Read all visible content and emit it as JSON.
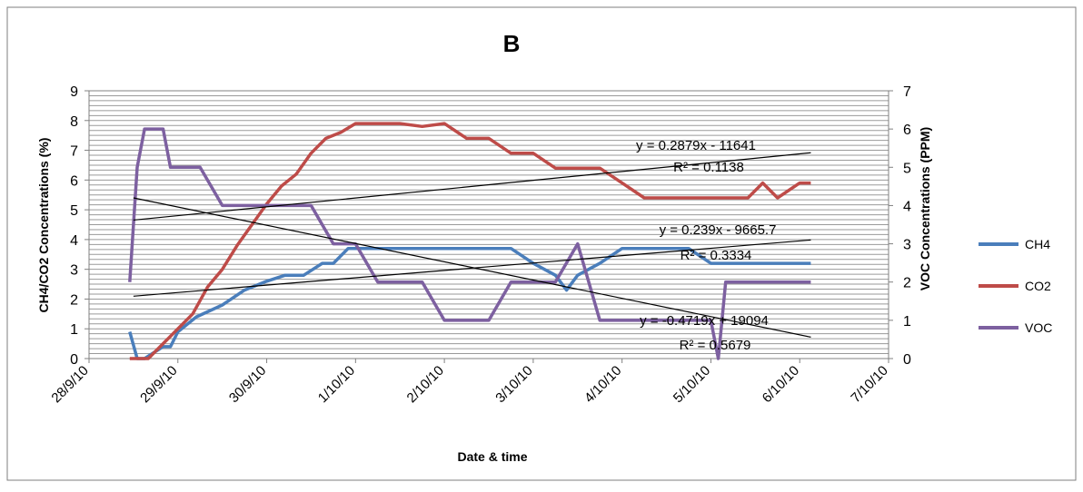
{
  "chart_data": {
    "type": "line",
    "title": "B",
    "xlabel": "Date & time",
    "ylabel_left": "CH4/CO2 Concentrations (%)",
    "ylabel_right": "VOC Concentrations (PPM)",
    "x_ticks": [
      "28/9/10",
      "29/9/10",
      "30/9/10",
      "1/10/10",
      "2/10/10",
      "3/10/10",
      "4/10/10",
      "5/10/10",
      "6/10/10",
      "7/10/10"
    ],
    "x_range": [
      "28/9/10",
      "7/10/10"
    ],
    "ylim_left": [
      0,
      9
    ],
    "ylim_right": [
      0,
      7
    ],
    "y_ticks_left": [
      "0",
      "1",
      "2",
      "3",
      "4",
      "5",
      "6",
      "7",
      "8",
      "9"
    ],
    "y_ticks_right": [
      "0",
      "1",
      "2",
      "3",
      "4",
      "5",
      "6",
      "7"
    ],
    "grid": true,
    "legend_position": "right",
    "series": [
      {
        "name": "CH4",
        "axis": "left",
        "color": "#4a7ebb",
        "x": [
          "28/9/10 11:00",
          "28/9/10 13:00",
          "28/9/10 15:00",
          "28/9/10 20:00",
          "28/9/10 22:00",
          "29/9/10 00:00",
          "29/9/10 05:00",
          "29/9/10 12:00",
          "29/9/10 18:00",
          "30/9/10 00:00",
          "30/9/10 05:00",
          "30/9/10 10:00",
          "30/9/10 15:00",
          "30/9/10 18:00",
          "30/9/10 22:00",
          "1/10/10 01:00",
          "1/10/10 06:00",
          "1/10/10 12:00",
          "1/10/10 18:00",
          "2/10/10 00:00",
          "2/10/10 06:00",
          "2/10/10 12:00",
          "2/10/10 18:00",
          "3/10/10 00:00",
          "3/10/10 06:00",
          "3/10/10 09:00",
          "3/10/10 12:00",
          "3/10/10 18:00",
          "4/10/10 00:00",
          "4/10/10 06:00",
          "4/10/10 12:00",
          "4/10/10 18:00",
          "5/10/10 00:00",
          "5/10/10 06:00",
          "5/10/10 12:00",
          "5/10/10 18:00",
          "6/10/10 00:00",
          "6/10/10 03:00"
        ],
        "values": [
          0.9,
          0.0,
          0.0,
          0.4,
          0.4,
          0.9,
          1.4,
          1.8,
          2.3,
          2.6,
          2.8,
          2.8,
          3.2,
          3.2,
          3.7,
          3.7,
          3.7,
          3.7,
          3.7,
          3.7,
          3.7,
          3.7,
          3.7,
          3.2,
          2.8,
          2.3,
          2.8,
          3.2,
          3.7,
          3.7,
          3.7,
          3.7,
          3.2,
          3.2,
          3.2,
          3.2,
          3.2,
          3.2
        ]
      },
      {
        "name": "CO2",
        "axis": "left",
        "color": "#be4b48",
        "x": [
          "28/9/10 11:00",
          "28/9/10 16:00",
          "28/9/10 20:00",
          "29/9/10 00:00",
          "29/9/10 04:00",
          "29/9/10 08:00",
          "29/9/10 12:00",
          "29/9/10 16:00",
          "29/9/10 20:00",
          "30/9/10 00:00",
          "30/9/10 04:00",
          "30/9/10 08:00",
          "30/9/10 12:00",
          "30/9/10 16:00",
          "30/9/10 20:00",
          "1/10/10 00:00",
          "1/10/10 06:00",
          "1/10/10 12:00",
          "1/10/10 18:00",
          "2/10/10 00:00",
          "2/10/10 06:00",
          "2/10/10 12:00",
          "2/10/10 18:00",
          "3/10/10 00:00",
          "3/10/10 06:00",
          "3/10/10 12:00",
          "3/10/10 18:00",
          "4/10/10 00:00",
          "4/10/10 06:00",
          "4/10/10 12:00",
          "4/10/10 18:00",
          "5/10/10 00:00",
          "5/10/10 06:00",
          "5/10/10 10:00",
          "5/10/10 14:00",
          "5/10/10 18:00",
          "6/10/10 00:00",
          "6/10/10 03:00"
        ],
        "values": [
          0.0,
          0.0,
          0.5,
          1.0,
          1.5,
          2.4,
          3.0,
          3.8,
          4.5,
          5.2,
          5.8,
          6.2,
          6.9,
          7.4,
          7.6,
          7.9,
          7.9,
          7.9,
          7.8,
          7.9,
          7.4,
          7.4,
          6.9,
          6.9,
          6.4,
          6.4,
          6.4,
          5.9,
          5.4,
          5.4,
          5.4,
          5.4,
          5.4,
          5.4,
          5.9,
          5.4,
          5.9,
          5.9
        ]
      },
      {
        "name": "VOC",
        "axis": "right",
        "color": "#7d60a0",
        "x": [
          "28/9/10 11:00",
          "28/9/10 13:00",
          "28/9/10 15:00",
          "28/9/10 20:00",
          "28/9/10 22:00",
          "29/9/10 00:00",
          "29/9/10 06:00",
          "29/9/10 12:00",
          "30/9/10 00:00",
          "30/9/10 12:00",
          "30/9/10 18:00",
          "1/10/10 00:00",
          "1/10/10 06:00",
          "1/10/10 12:00",
          "1/10/10 18:00",
          "2/10/10 00:00",
          "2/10/10 06:00",
          "2/10/10 12:00",
          "2/10/10 18:00",
          "3/10/10 00:00",
          "3/10/10 06:00",
          "3/10/10 12:00",
          "3/10/10 18:00",
          "4/10/10 00:00",
          "4/10/10 06:00",
          "4/10/10 12:00",
          "4/10/10 18:00",
          "5/10/10 00:00",
          "5/10/10 02:00",
          "5/10/10 04:00",
          "5/10/10 12:00",
          "5/10/10 18:00",
          "6/10/10 00:00",
          "6/10/10 03:00"
        ],
        "values": [
          2.0,
          5.0,
          6.0,
          6.0,
          5.0,
          5.0,
          5.0,
          4.0,
          4.0,
          4.0,
          3.0,
          3.0,
          2.0,
          2.0,
          2.0,
          1.0,
          1.0,
          1.0,
          2.0,
          2.0,
          2.0,
          3.0,
          1.0,
          1.0,
          1.0,
          1.0,
          1.0,
          1.0,
          0.0,
          2.0,
          2.0,
          2.0,
          2.0,
          2.0
        ]
      }
    ],
    "trendlines": [
      {
        "axis": "right",
        "equation": "y = 0.2879x - 11641",
        "r2": "R² = 0.1138",
        "x": [
          "28/9/10 12:00",
          "6/10/10 03:00"
        ],
        "values": [
          3.62,
          5.38
        ]
      },
      {
        "axis": "right",
        "equation": "y = 0.239x - 9665.7",
        "r2": "R² = 0.3334",
        "x": [
          "28/9/10 12:00",
          "6/10/10 03:00"
        ],
        "values": [
          1.63,
          3.1
        ]
      },
      {
        "axis": "right",
        "equation": "y = -0.4719x + 19094",
        "r2": "R² = 0.5679",
        "x": [
          "28/9/10 12:00",
          "6/10/10 03:00"
        ],
        "values": [
          4.2,
          0.56
        ]
      }
    ]
  }
}
